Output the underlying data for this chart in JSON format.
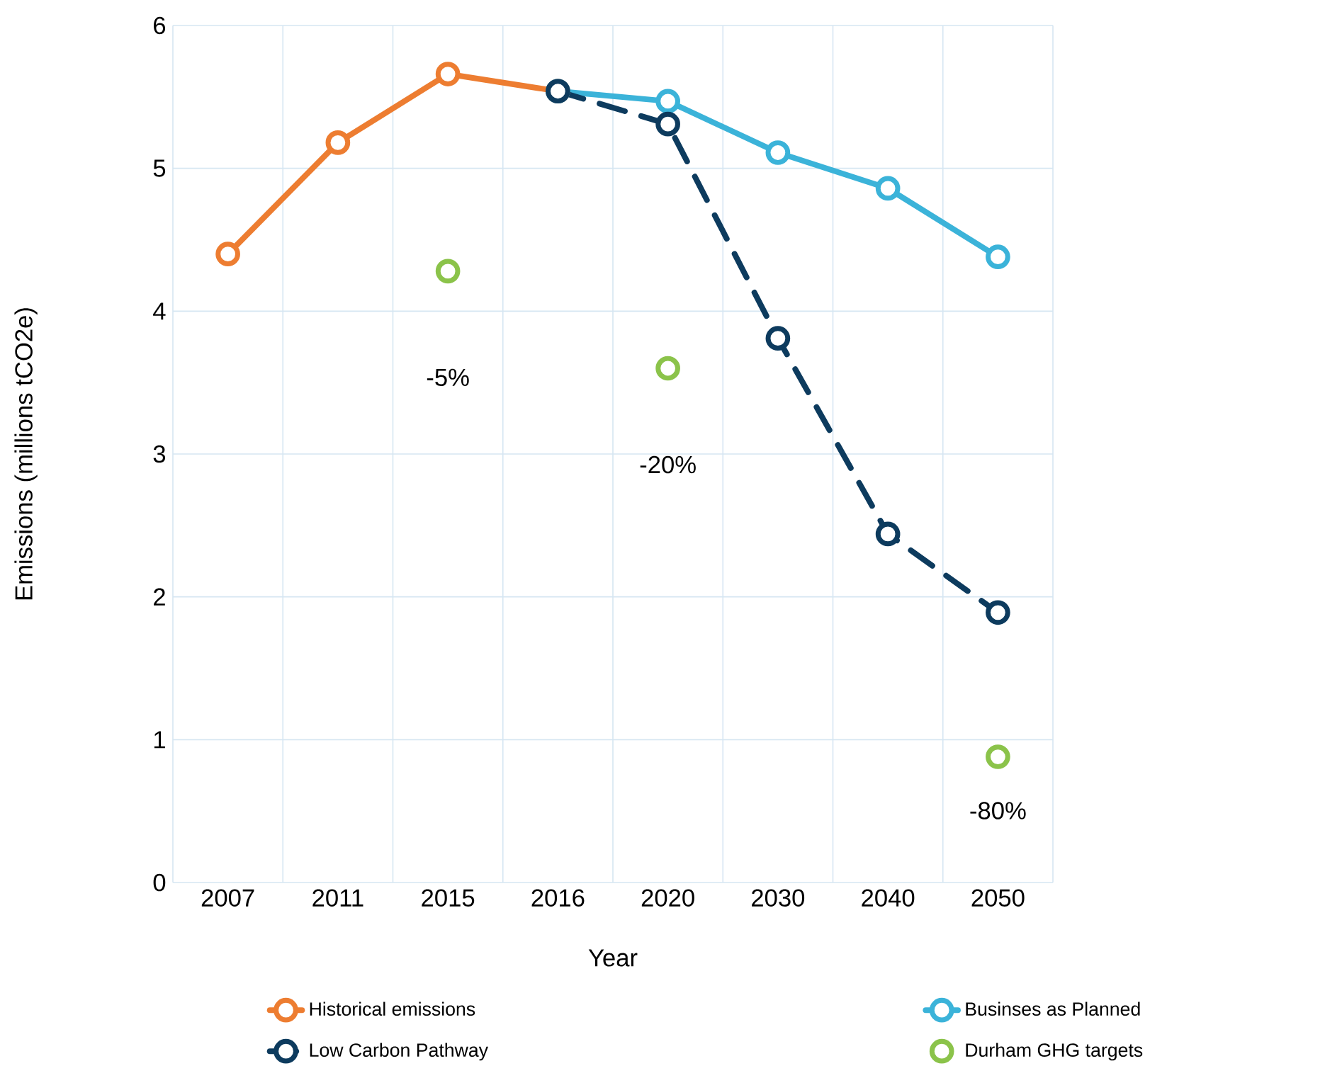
{
  "chart_data": {
    "type": "line",
    "xlabel": "Year",
    "ylabel": "Emissions (millions tCO2e)",
    "categories": [
      "2007",
      "2011",
      "2015",
      "2016",
      "2020",
      "2030",
      "2040",
      "2050"
    ],
    "series": [
      {
        "name": "Historical emissions",
        "color": "#ed7d31",
        "values": [
          4.4,
          5.18,
          5.66,
          5.54,
          null,
          null,
          null,
          null
        ]
      },
      {
        "name": "Businses as Planned",
        "color": "#3bb3d9",
        "values": [
          null,
          null,
          null,
          5.54,
          5.47,
          5.11,
          4.86,
          4.38
        ]
      },
      {
        "name": "Low Carbon Pathway",
        "color": "#0d3b5e",
        "line_style": "dashed",
        "values": [
          null,
          null,
          null,
          5.54,
          5.31,
          3.81,
          2.44,
          1.89
        ]
      },
      {
        "name": "Durham GHG targets",
        "color": "#8bc34a",
        "type": "scatter",
        "values": [
          null,
          null,
          4.28,
          null,
          3.6,
          null,
          null,
          0.88
        ]
      }
    ],
    "ylim": [
      0,
      6
    ],
    "yticks": [
      0,
      1,
      2,
      3,
      4,
      5,
      6
    ],
    "grid": true,
    "legend": "bottom",
    "marker": "circle",
    "annotations": [
      "-5%",
      "-20%",
      "-80%"
    ]
  }
}
